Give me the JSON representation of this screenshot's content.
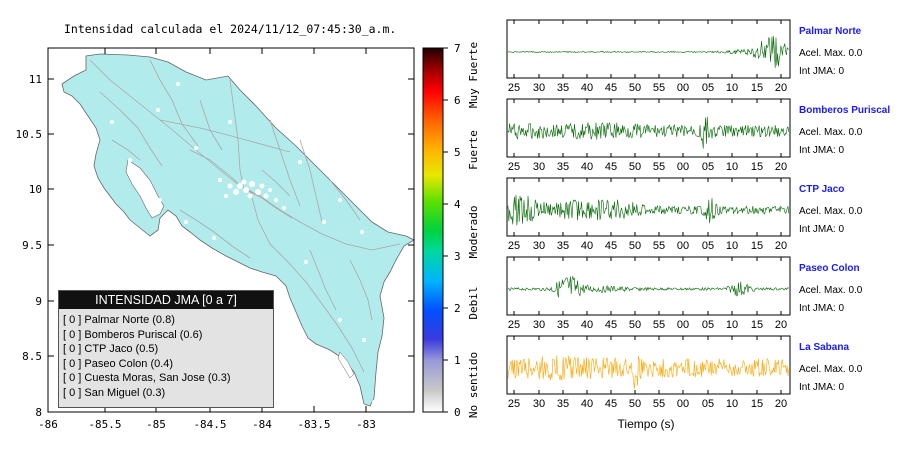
{
  "map": {
    "title": "Intensidad calculada el 2024/11/12_07:45:30_a.m.",
    "x_ticks": [
      "-86",
      "-85.5",
      "-85",
      "-84.5",
      "-84",
      "-83.5",
      "-83"
    ],
    "y_ticks": [
      "11",
      "10.5",
      "10",
      "9.5",
      "9",
      "8.5",
      "8"
    ],
    "land_color": "#b2ebec",
    "sea_color": "#ffffff"
  },
  "legend": {
    "title": "INTENSIDAD JMA [0 a 7]",
    "items": [
      "[ 0 ]  Palmar Norte (0.8)",
      "[ 0 ]  Bomberos Puriscal (0.6)",
      "[ 0 ]  CTP Jaco (0.5)",
      "[ 0 ]  Paseo Colon (0.4)",
      "[ 0 ]  Cuesta Moras, San Jose (0.3)",
      "[ 0 ]  San Miguel (0.3)"
    ]
  },
  "colorbar": {
    "ticks": [
      "0",
      "1",
      "2",
      "3",
      "4",
      "5",
      "6",
      "7"
    ],
    "labels": [
      "No sentido",
      "Debil",
      "Moderado",
      "Fuerte",
      "Muy Fuerte"
    ]
  },
  "waveforms": {
    "x_ticks": [
      "25",
      "30",
      "35",
      "40",
      "45",
      "50",
      "55",
      "00",
      "05",
      "10",
      "15",
      "20"
    ],
    "xlabel": "Tiempo (s)",
    "stations": [
      {
        "name": "Palmar Norte",
        "accel": "Acel. Max. 0.0",
        "jma": "Int JMA: 0",
        "color": "#006600"
      },
      {
        "name": "Bomberos Puriscal",
        "accel": "Acel. Max. 0.0",
        "jma": "Int JMA: 0",
        "color": "#006600"
      },
      {
        "name": "CTP Jaco",
        "accel": "Acel. Max. 0.0",
        "jma": "Int JMA: 0",
        "color": "#006600"
      },
      {
        "name": "Paseo Colon",
        "accel": "Acel. Max. 0.0",
        "jma": "Int JMA: 0",
        "color": "#006600"
      },
      {
        "name": "La Sabana",
        "accel": "Acel. Max. 0.0",
        "jma": "Int JMA: 0",
        "color": "#ffa500"
      }
    ]
  },
  "chart_data": [
    {
      "type": "map",
      "title": "Intensidad calculada el 2024/11/12_07:45:30_a.m.",
      "xlim": [
        -86,
        -82.6
      ],
      "ylim": [
        8,
        11.3
      ],
      "legend_placement": "bottom-left"
    },
    {
      "type": "colorbar",
      "range": [
        0,
        7
      ],
      "categories": [
        "No sentido",
        "Debil",
        "Moderado",
        "Fuerte",
        "Muy Fuerte"
      ]
    },
    {
      "type": "line",
      "xlabel": "Tiempo (s)",
      "series": [
        {
          "name": "Palmar Norte",
          "peak_region": [
            15,
            21
          ]
        },
        {
          "name": "Bomberos Puriscal",
          "peak_region": [
            3,
            5
          ]
        },
        {
          "name": "CTP Jaco",
          "peak_region": [
            23,
            27
          ]
        },
        {
          "name": "Paseo Colon",
          "peak_region": [
            34,
            37
          ]
        },
        {
          "name": "La Sabana",
          "peak_region": [
            49,
            51
          ]
        }
      ]
    }
  ]
}
